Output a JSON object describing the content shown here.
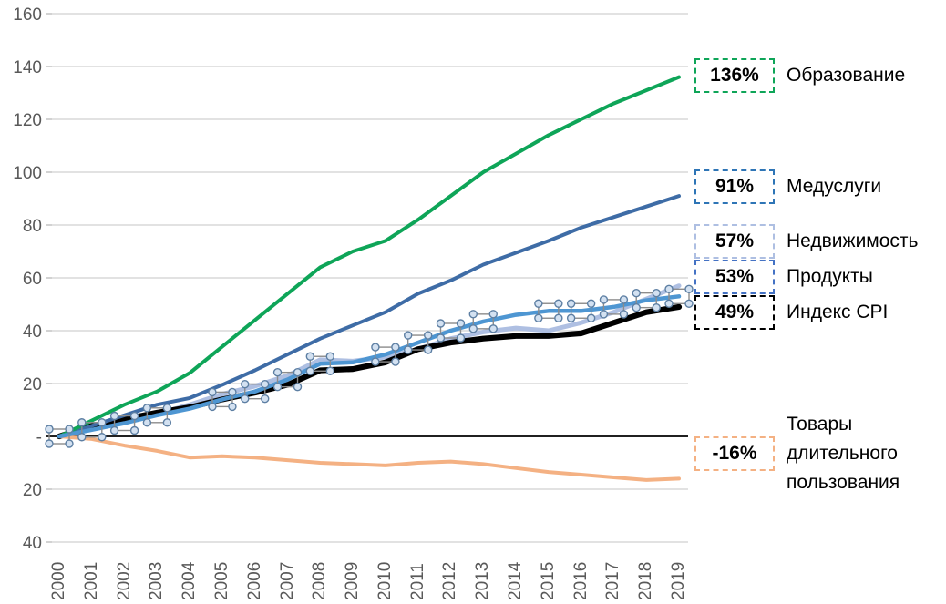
{
  "chart_data": {
    "type": "line",
    "title": "",
    "xlabel": "",
    "ylabel": "",
    "x": [
      "2000",
      "2001",
      "2002",
      "2003",
      "2004",
      "2005",
      "2006",
      "2007",
      "2008",
      "2009",
      "2010",
      "2011",
      "2012",
      "2013",
      "2014",
      "2015",
      "2016",
      "2017",
      "2018",
      "2019"
    ],
    "ylim": [
      -40,
      160
    ],
    "ytick_values": [
      160,
      140,
      120,
      100,
      80,
      60,
      40,
      20,
      0,
      -20,
      -40
    ],
    "ytick_labels": [
      "160",
      "140",
      "120",
      "100",
      "80",
      "60",
      "40",
      "20",
      "-",
      "20",
      "40"
    ],
    "grid": true,
    "legend_position": "right",
    "gridline_color": "#D9D9D9",
    "zero_line_color": "#000000",
    "axis_label_color": "#595959",
    "series": [
      {
        "name": "Образование",
        "final_change_label": "136%",
        "color": "#0EA558",
        "badge_color": "#0EA558",
        "values": [
          0,
          6,
          12,
          17,
          24,
          34,
          44,
          54,
          64,
          70,
          74,
          82,
          91,
          100,
          107,
          114,
          120,
          126,
          131,
          136
        ]
      },
      {
        "name": "Медуслуги",
        "final_change_label": "91%",
        "color": "#3E6CA6",
        "badge_color": "#2E75B6",
        "values": [
          0,
          4,
          8,
          12,
          14.5,
          19.5,
          25,
          31,
          37,
          42,
          47,
          54,
          59,
          65,
          69.5,
          74,
          79,
          83,
          87,
          91
        ]
      },
      {
        "name": "Недвижимость",
        "final_change_label": "57%",
        "color": "#AEBFE2",
        "badge_color": "#AEBFE2",
        "values": [
          0,
          3,
          6,
          8.5,
          12,
          16,
          19,
          23,
          29,
          28.5,
          30,
          33,
          37,
          39.5,
          41,
          40,
          43,
          47,
          52,
          57
        ]
      },
      {
        "name": "Продукты",
        "final_change_label": "53%",
        "color": "#4E96D2",
        "badge_color": "#4472C4",
        "markers": true,
        "marker_style": "selection-rect-with-corner-circles",
        "marker_years": [
          "2000",
          "2001",
          "2002",
          "2003",
          "2005",
          "2006",
          "2007",
          "2008",
          "2010",
          "2011",
          "2012",
          "2013",
          "2015",
          "2016",
          "2017",
          "2018",
          "2019"
        ],
        "values": [
          0,
          2.5,
          5,
          8,
          10.5,
          14,
          17,
          21.5,
          27.5,
          28,
          31,
          35.5,
          40,
          43.5,
          46,
          47.5,
          47.5,
          49,
          51.5,
          53
        ]
      },
      {
        "name": "Индекс CPI",
        "final_change_label": "49%",
        "color": "#000000",
        "badge_color": "#000000",
        "values": [
          0,
          4,
          6.5,
          9,
          11,
          14,
          16.5,
          19.5,
          25,
          25.5,
          28,
          33,
          35.5,
          37,
          38,
          38,
          39,
          43,
          47,
          49
        ]
      },
      {
        "name": "Товары длительного пользования",
        "final_change_label": "-16%",
        "color": "#F4B183",
        "badge_color": "#F4B183",
        "values": [
          0,
          -1,
          -3.5,
          -5.5,
          -8,
          -7.5,
          -8,
          -9,
          -10,
          -10.5,
          -11,
          -10,
          -9.5,
          -10.5,
          -12,
          -13.5,
          -14.5,
          -15.5,
          -16.5,
          -16
        ]
      }
    ]
  }
}
